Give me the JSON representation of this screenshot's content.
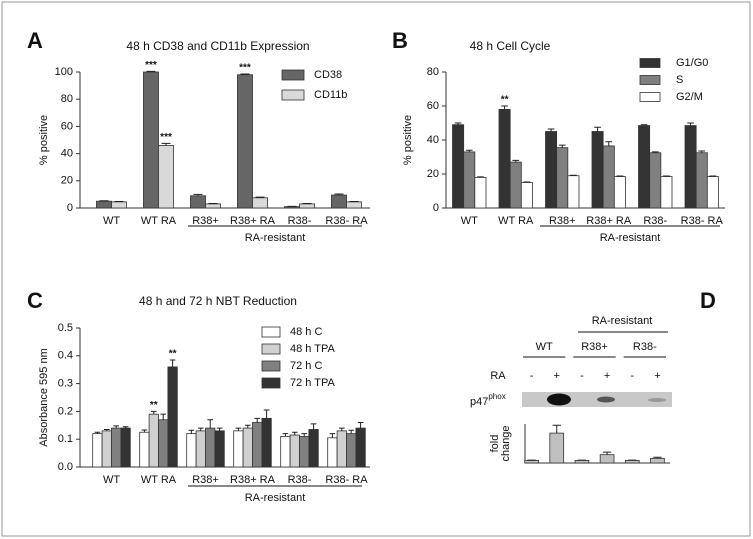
{
  "chart_data": [
    {
      "type": "bar",
      "label": "A",
      "title": "48 h CD38 and CD11b Expression",
      "ylabel": "% positive",
      "categories": [
        "WT",
        "WT RA",
        "R38+",
        "R38+ RA",
        "R38-",
        "R38- RA"
      ],
      "group_label": "RA-resistant",
      "ylim": [
        0,
        100
      ],
      "yticks": [
        0,
        20,
        40,
        60,
        80,
        100
      ],
      "series": [
        {
          "name": "CD38",
          "color": "#666666",
          "values": [
            5,
            100,
            9,
            98,
            1,
            9.5
          ],
          "errors": [
            0.3,
            0.5,
            1,
            0.5,
            0.2,
            0.8
          ],
          "significance": [
            null,
            "***",
            null,
            "***",
            null,
            null
          ]
        },
        {
          "name": "CD11b",
          "color": "#d9d9d9",
          "values": [
            4.5,
            46,
            3,
            7.5,
            3,
            4.5
          ],
          "errors": [
            0.3,
            1.5,
            0.3,
            0.5,
            0.3,
            0.3
          ],
          "significance": [
            null,
            "***",
            null,
            null,
            null,
            null
          ]
        }
      ]
    },
    {
      "type": "bar",
      "label": "B",
      "title": "48 h Cell Cycle",
      "ylabel": "% positive",
      "categories": [
        "WT",
        "WT RA",
        "R38+",
        "R38+ RA",
        "R38-",
        "R38- RA"
      ],
      "group_label": "RA-resistant",
      "ylim": [
        0,
        80
      ],
      "yticks": [
        0,
        20,
        40,
        60,
        80
      ],
      "series": [
        {
          "name": "G1/G0",
          "color": "#333333",
          "values": [
            49,
            58,
            45,
            45,
            48.5,
            48.5
          ],
          "errors": [
            1,
            2,
            1.5,
            2.5,
            0.5,
            1.5
          ],
          "significance": [
            null,
            "**",
            null,
            null,
            null,
            null
          ]
        },
        {
          "name": "S",
          "color": "#808080",
          "values": [
            33,
            27,
            35.5,
            36.5,
            32.5,
            32.5
          ],
          "errors": [
            1,
            1,
            1.5,
            2.5,
            0.5,
            1
          ],
          "significance": [
            null,
            null,
            null,
            null,
            null,
            null
          ]
        },
        {
          "name": "G2/M",
          "color": "#ffffff",
          "values": [
            18,
            15,
            19,
            18.5,
            18.5,
            18.5
          ],
          "errors": [
            0.3,
            0.3,
            0.3,
            0.3,
            0.3,
            0.3
          ],
          "significance": [
            null,
            null,
            null,
            null,
            null,
            null
          ]
        }
      ]
    },
    {
      "type": "bar",
      "label": "C",
      "title": "48 h and 72 h NBT Reduction",
      "ylabel": "Absorbance 595 nm",
      "categories": [
        "WT",
        "WT RA",
        "R38+",
        "R38+ RA",
        "R38-",
        "R38- RA"
      ],
      "group_label": "RA-resistant",
      "ylim": [
        0,
        0.5
      ],
      "yticks": [
        {
          "value": 0,
          "label": "0.0"
        },
        0.1,
        0.2,
        0.3,
        0.4,
        0.5
      ],
      "series": [
        {
          "name": "48 h C",
          "color": "#ffffff",
          "values": [
            0.12,
            0.125,
            0.12,
            0.13,
            0.11,
            0.105
          ],
          "errors": [
            0.005,
            0.008,
            0.012,
            0.01,
            0.01,
            0.015
          ],
          "significance": [
            null,
            null,
            null,
            null,
            null,
            null
          ]
        },
        {
          "name": "48 h TPA",
          "color": "#d0d0d0",
          "values": [
            0.13,
            0.19,
            0.13,
            0.14,
            0.115,
            0.13
          ],
          "errors": [
            0.005,
            0.01,
            0.01,
            0.01,
            0.01,
            0.01
          ],
          "significance": [
            null,
            "**",
            null,
            null,
            null,
            null
          ]
        },
        {
          "name": "72 h C",
          "color": "#808080",
          "values": [
            0.14,
            0.17,
            0.14,
            0.16,
            0.11,
            0.12
          ],
          "errors": [
            0.008,
            0.02,
            0.03,
            0.015,
            0.01,
            0.012
          ],
          "significance": [
            null,
            null,
            null,
            null,
            null,
            null
          ]
        },
        {
          "name": "72 h TPA",
          "color": "#333333",
          "values": [
            0.14,
            0.36,
            0.13,
            0.175,
            0.135,
            0.14
          ],
          "errors": [
            0.005,
            0.025,
            0.01,
            0.03,
            0.02,
            0.02
          ],
          "significance": [
            null,
            "**",
            null,
            null,
            null,
            null
          ]
        }
      ]
    },
    {
      "type": "blot",
      "label": "D",
      "group_label": "RA-resistant",
      "groups": [
        "WT",
        "R38+",
        "R38-"
      ],
      "row_label": "RA",
      "categories": [
        "-",
        "+",
        "-",
        "+",
        "-",
        "+"
      ],
      "blot_label": {
        "text": "p47",
        "superscript": "phox"
      },
      "ylabel": [
        "fold",
        "change"
      ],
      "ylim": [
        0,
        15
      ],
      "series": [
        {
          "color": "#c0c0c0",
          "values": [
            1,
            11.5,
            1,
            3.2,
            1,
            1.8
          ],
          "errors": [
            0.1,
            3,
            0.1,
            1,
            0.1,
            0.4
          ]
        }
      ]
    }
  ]
}
